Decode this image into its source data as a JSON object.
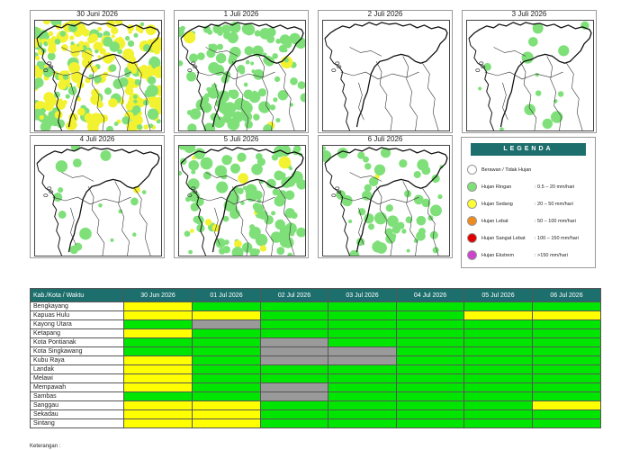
{
  "colors": {
    "green": "#00e600",
    "yellow": "#ffff00",
    "gray": "#9a9a9a",
    "header": "#1d6f6d",
    "map_light_rain": "#7fe07a",
    "map_moderate_rain": "#f2f230"
  },
  "panels": [
    {
      "date": "30 Juni 2026",
      "coverage": "heavy",
      "dominant": "moderate-rain"
    },
    {
      "date": "1 Juli 2026",
      "coverage": "medium",
      "dominant": "light-rain"
    },
    {
      "date": "2 Juli 2026",
      "coverage": "none",
      "dominant": "cloudy"
    },
    {
      "date": "3 Juli 2026",
      "coverage": "trace",
      "dominant": "cloudy"
    },
    {
      "date": "4 Juli 2026",
      "coverage": "trace",
      "dominant": "cloudy"
    },
    {
      "date": "5 Juli 2026",
      "coverage": "medium",
      "dominant": "light-rain"
    },
    {
      "date": "6 Juli 2026",
      "coverage": "light",
      "dominant": "light-rain"
    }
  ],
  "legend": {
    "title": "LEGENDA",
    "items": [
      {
        "label": "Berawan / Tidak Hujan",
        "range": "",
        "color": "#ffffff"
      },
      {
        "label": "Hujan Ringan",
        "range": ": 0.5 – 20 mm/hari",
        "color": "#7fe07a"
      },
      {
        "label": "Hujan Sedang",
        "range": ": 20 – 50 mm/hari",
        "color": "#ffff33"
      },
      {
        "label": "Hujan Lebat",
        "range": ": 50 – 100 mm/hari",
        "color": "#f08a1c"
      },
      {
        "label": "Hujan Sangat Lebat",
        "range": ": 100 – 150 mm/hari",
        "color": "#e00000"
      },
      {
        "label": "Hujan Ekstrem",
        "range": ": >150 mm/hari",
        "color": "#cc44cc"
      }
    ]
  },
  "table": {
    "header_first": "Kab./Kota / Waktu",
    "dates": [
      "30 Jun 2026",
      "01 Jul 2026",
      "02 Jul 2026",
      "03 Jul 2026",
      "04 Jul 2026",
      "05 Jul 2026",
      "06 Jul 2026"
    ],
    "rows": [
      {
        "name": "Bengkayang",
        "cells": [
          "Y",
          "G",
          "G",
          "G",
          "G",
          "G",
          "G"
        ]
      },
      {
        "name": "Kapuas Hulu",
        "cells": [
          "Y",
          "Y",
          "G",
          "G",
          "G",
          "Y",
          "Y"
        ]
      },
      {
        "name": "Kayong Utara",
        "cells": [
          "G",
          "X",
          "G",
          "G",
          "G",
          "G",
          "G"
        ]
      },
      {
        "name": "Ketapang",
        "cells": [
          "Y",
          "G",
          "G",
          "G",
          "G",
          "G",
          "G"
        ]
      },
      {
        "name": "Kota Pontianak",
        "cells": [
          "G",
          "G",
          "X",
          "G",
          "G",
          "G",
          "G"
        ]
      },
      {
        "name": "Kota Singkawang",
        "cells": [
          "G",
          "G",
          "X",
          "X",
          "G",
          "G",
          "G"
        ]
      },
      {
        "name": "Kubu Raya",
        "cells": [
          "Y",
          "G",
          "X",
          "X",
          "G",
          "G",
          "G"
        ]
      },
      {
        "name": "Landak",
        "cells": [
          "Y",
          "G",
          "G",
          "G",
          "G",
          "G",
          "G"
        ]
      },
      {
        "name": "Melawi",
        "cells": [
          "Y",
          "G",
          "G",
          "G",
          "G",
          "G",
          "G"
        ]
      },
      {
        "name": "Mempawah",
        "cells": [
          "Y",
          "G",
          "X",
          "G",
          "G",
          "G",
          "G"
        ]
      },
      {
        "name": "Sambas",
        "cells": [
          "G",
          "G",
          "X",
          "G",
          "G",
          "G",
          "G"
        ]
      },
      {
        "name": "Sanggau",
        "cells": [
          "Y",
          "Y",
          "G",
          "G",
          "G",
          "G",
          "Y"
        ]
      },
      {
        "name": "Sekadau",
        "cells": [
          "Y",
          "Y",
          "G",
          "G",
          "G",
          "G",
          "G"
        ]
      },
      {
        "name": "Sintang",
        "cells": [
          "Y",
          "Y",
          "G",
          "G",
          "G",
          "G",
          "G"
        ]
      }
    ]
  },
  "footer": "Keterangan :"
}
